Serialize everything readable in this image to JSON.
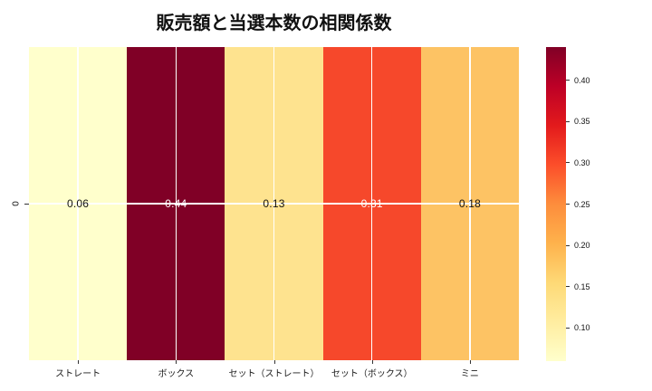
{
  "title": "販売額と当選本数の相関係数",
  "y_axis": {
    "tick_label": "0"
  },
  "chart_data": {
    "type": "heatmap",
    "title": "販売額と当選本数の相関係数",
    "categories": [
      "ストレート",
      "ボックス",
      "セット（ストレート）",
      "セット（ボックス）",
      "ミニ"
    ],
    "rows": [
      "0"
    ],
    "values": [
      [
        0.06,
        0.44,
        0.13,
        0.31,
        0.18
      ]
    ],
    "annotations": [
      {
        "label": "0.06",
        "cell_color": "#ffffcc",
        "text_color": "#111111"
      },
      {
        "label": "0.44",
        "cell_color": "#800026",
        "text_color": "#ffffff"
      },
      {
        "label": "0.13",
        "cell_color": "#fee38f",
        "text_color": "#111111"
      },
      {
        "label": "0.31",
        "cell_color": "#f6482b",
        "text_color": "#ffffff"
      },
      {
        "label": "0.18",
        "cell_color": "#fdc364",
        "text_color": "#111111"
      }
    ],
    "colormap": "YlOrRd",
    "vmin": 0.06,
    "vmax": 0.44,
    "grid": true,
    "grid_color": "#ffffff",
    "colorbar": {
      "position": "right",
      "ticks": [
        0.4,
        0.35,
        0.3,
        0.25,
        0.2,
        0.15,
        0.1
      ],
      "tick_labels": [
        "0.40",
        "0.35",
        "0.30",
        "0.25",
        "0.20",
        "0.15",
        "0.10"
      ],
      "gradient_stops": [
        "#ffffcc",
        "#ffeda0",
        "#fed976",
        "#feb24c",
        "#fd8d3c",
        "#fc4e2a",
        "#e31a1c",
        "#bd0026",
        "#800026"
      ]
    }
  }
}
